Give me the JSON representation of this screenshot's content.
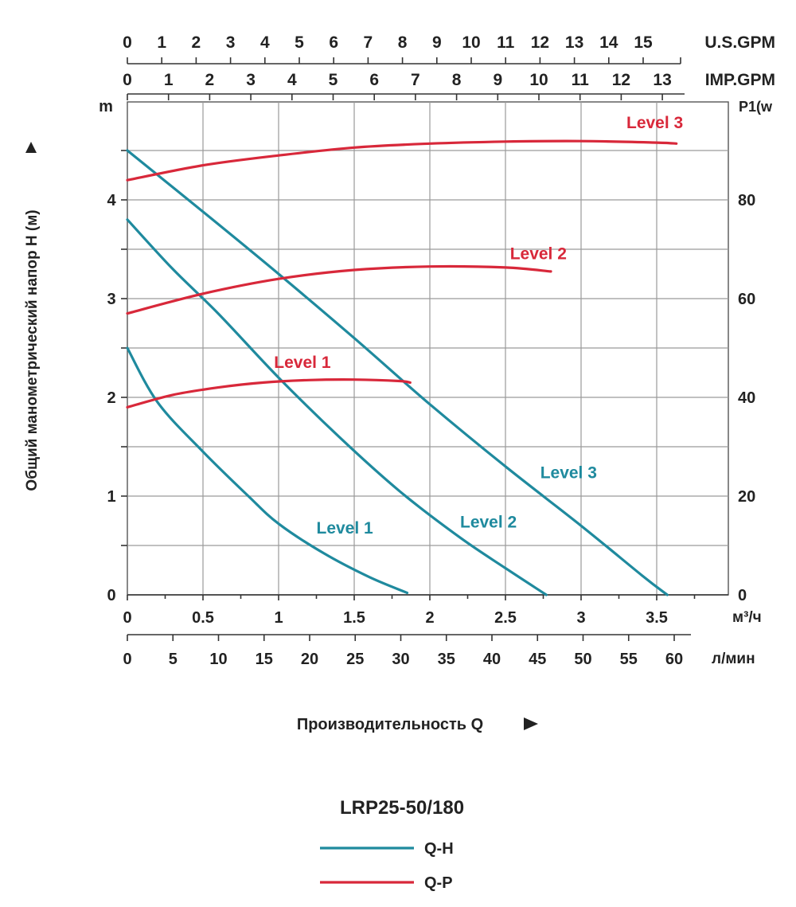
{
  "colors": {
    "qh": "#1f8a9e",
    "qp": "#d8283a",
    "text": "#222222"
  },
  "chart_data": {
    "type": "line",
    "title": "LRP25-50/180",
    "xlabel": "Производительность Q",
    "ylabel": "Общий манометрический напор H (м)",
    "left_unit": "m",
    "right_unit": "P1(w",
    "flow_unit_m3h": "м³/ч",
    "flow_unit_lmin": "л/мин",
    "us_gpm_label": "U.S.GPM",
    "imp_gpm_label": "IMP.GPM",
    "xlim": [
      0,
      3.9
    ],
    "ylim": [
      0,
      5
    ],
    "y2lim": [
      0,
      100
    ],
    "grid": true,
    "x_ticks_m3h": [
      "0",
      "0.5",
      "1",
      "1.5",
      "2",
      "2.5",
      "3",
      "3.5"
    ],
    "x_ticks_lmin": [
      "0",
      "5",
      "10",
      "15",
      "20",
      "25",
      "30",
      "35",
      "40",
      "45",
      "50",
      "55",
      "60"
    ],
    "x_ticks_usgpm": [
      "0",
      "1",
      "2",
      "3",
      "4",
      "5",
      "6",
      "7",
      "8",
      "9",
      "10",
      "11",
      "12",
      "13",
      "14",
      "15"
    ],
    "x_ticks_impgpm": [
      "0",
      "1",
      "2",
      "3",
      "4",
      "5",
      "6",
      "7",
      "8",
      "9",
      "10",
      "11",
      "12",
      "13"
    ],
    "y_ticks_left": [
      "0",
      "1",
      "2",
      "3",
      "4"
    ],
    "y_ticks_right": [
      "0",
      "20",
      "40",
      "60",
      "80"
    ],
    "legend": [
      {
        "key": "qh",
        "label": "Q-H"
      },
      {
        "key": "qp",
        "label": "Q-P"
      }
    ],
    "series": [
      {
        "key": "qh1",
        "label": "Level 1",
        "color_key": "qh",
        "axis": "left",
        "label_pos": [
          1.25,
          0.62
        ],
        "x": [
          0,
          0.2,
          0.5,
          0.8,
          1.0,
          1.3,
          1.6,
          1.85
        ],
        "y": [
          2.5,
          1.95,
          1.45,
          1.0,
          0.72,
          0.42,
          0.18,
          0.02
        ]
      },
      {
        "key": "qh2",
        "label": "Level 2",
        "color_key": "qh",
        "axis": "left",
        "label_pos": [
          2.2,
          0.68
        ],
        "x": [
          0,
          0.3,
          0.6,
          1.0,
          1.4,
          1.8,
          2.2,
          2.5,
          2.77
        ],
        "y": [
          3.8,
          3.3,
          2.85,
          2.2,
          1.6,
          1.05,
          0.58,
          0.27,
          0
        ]
      },
      {
        "key": "qh3",
        "label": "Level 3",
        "color_key": "qh",
        "axis": "left",
        "label_pos": [
          2.73,
          1.18
        ],
        "x": [
          0,
          0.5,
          1.0,
          1.5,
          2.0,
          2.5,
          3.0,
          3.4,
          3.57
        ],
        "y": [
          4.5,
          3.88,
          3.25,
          2.6,
          1.93,
          1.3,
          0.7,
          0.2,
          0
        ]
      },
      {
        "key": "qp1",
        "label": "Level 1",
        "color_key": "qp",
        "axis": "right",
        "label_pos": [
          0.97,
          46
        ],
        "x": [
          0,
          0.3,
          0.6,
          0.9,
          1.2,
          1.5,
          1.8,
          1.87
        ],
        "y": [
          38,
          40.5,
          42,
          43,
          43.5,
          43.6,
          43.3,
          43
        ]
      },
      {
        "key": "qp2",
        "label": "Level 2",
        "color_key": "qp",
        "axis": "right",
        "label_pos": [
          2.53,
          68
        ],
        "x": [
          0,
          0.5,
          1.0,
          1.5,
          2.0,
          2.5,
          2.8
        ],
        "y": [
          57,
          61,
          64,
          65.8,
          66.5,
          66.3,
          65.5
        ]
      },
      {
        "key": "qp3",
        "label": "Level 3",
        "color_key": "qp",
        "axis": "right",
        "label_pos": [
          3.3,
          94.5
        ],
        "x": [
          0,
          0.5,
          1.0,
          1.5,
          2.0,
          2.5,
          3.0,
          3.5,
          3.63
        ],
        "y": [
          84,
          87,
          89,
          90.6,
          91.4,
          91.8,
          91.9,
          91.6,
          91.4
        ]
      }
    ]
  }
}
